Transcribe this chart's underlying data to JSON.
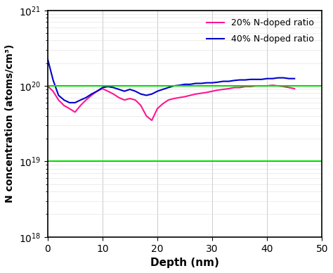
{
  "title": "",
  "xlabel": "Depth (nm)",
  "ylabel": "N concentration (atoms/cm³)",
  "xlim": [
    0,
    50
  ],
  "ylim": [
    1e+18,
    1e+21
  ],
  "hline1": 1e+20,
  "hline2": 1e+19,
  "hline_color": "#00dd00",
  "hline_lw": 1.5,
  "legend1": "20% N-doped ratio",
  "legend2": "40% N-doped ratio",
  "color_20": "#ff1493",
  "color_40": "#0000cc",
  "lw": 1.5,
  "pink_x": [
    0,
    1,
    2,
    3,
    4,
    5,
    6,
    7,
    8,
    9,
    10,
    11,
    12,
    13,
    14,
    15,
    16,
    17,
    18,
    19,
    20,
    21,
    22,
    23,
    24,
    25,
    26,
    27,
    28,
    29,
    30,
    31,
    32,
    33,
    34,
    35,
    36,
    37,
    38,
    39,
    40,
    41,
    42,
    43,
    44,
    45
  ],
  "pink_y": [
    100000000000000000000,
    85000000000000000000,
    65000000000000000000,
    55000000000000000000,
    50000000000000000000,
    45000000000000000000,
    55000000000000000000,
    65000000000000000000,
    75000000000000000000,
    85000000000000000000,
    92000000000000000000,
    85000000000000000000,
    78000000000000000000,
    70000000000000000000,
    65000000000000000000,
    68000000000000000000,
    65000000000000000000,
    55000000000000000000,
    40000000000000000000,
    35000000000000000000,
    50000000000000000000,
    58000000000000000000,
    65000000000000000000,
    68000000000000000000,
    70000000000000000000,
    72000000000000000000,
    75000000000000000000,
    78000000000000000000,
    80000000000000000000,
    82000000000000000000,
    85000000000000000000,
    88000000000000000000,
    90000000000000000000,
    92000000000000000000,
    95000000000000000000,
    95000000000000000000,
    98000000000000000000,
    98000000000000000000,
    100000000000000000000,
    100000000000000000000,
    100000000000000000000,
    102000000000000000000,
    100000000000000000000,
    98000000000000000000,
    95000000000000000000,
    92000000000000000000
  ],
  "blue_x": [
    0,
    1,
    2,
    3,
    4,
    5,
    6,
    7,
    8,
    9,
    10,
    11,
    12,
    13,
    14,
    15,
    16,
    17,
    18,
    19,
    20,
    21,
    22,
    23,
    24,
    25,
    26,
    27,
    28,
    29,
    30,
    31,
    32,
    33,
    34,
    35,
    36,
    37,
    38,
    39,
    40,
    41,
    42,
    43,
    44,
    45
  ],
  "blue_y": [
    230000000000000000000,
    120000000000000000000,
    75000000000000000000,
    65000000000000000000,
    60000000000000000000,
    60000000000000000000,
    65000000000000000000,
    70000000000000000000,
    78000000000000000000,
    85000000000000000000,
    95000000000000000000,
    98000000000000000000,
    95000000000000000000,
    90000000000000000000,
    85000000000000000000,
    90000000000000000000,
    85000000000000000000,
    78000000000000000000,
    75000000000000000000,
    78000000000000000000,
    85000000000000000000,
    90000000000000000000,
    95000000000000000000,
    100000000000000000000,
    102000000000000000000,
    105000000000000000000,
    105000000000000000000,
    108000000000000000000,
    108000000000000000000,
    110000000000000000000,
    110000000000000000000,
    112000000000000000000,
    115000000000000000000,
    115000000000000000000,
    118000000000000000000,
    120000000000000000000,
    120000000000000000000,
    122000000000000000000,
    122000000000000000000,
    122000000000000000000,
    125000000000000000000,
    125000000000000000000,
    128000000000000000000,
    128000000000000000000,
    125000000000000000000,
    125000000000000000000
  ]
}
